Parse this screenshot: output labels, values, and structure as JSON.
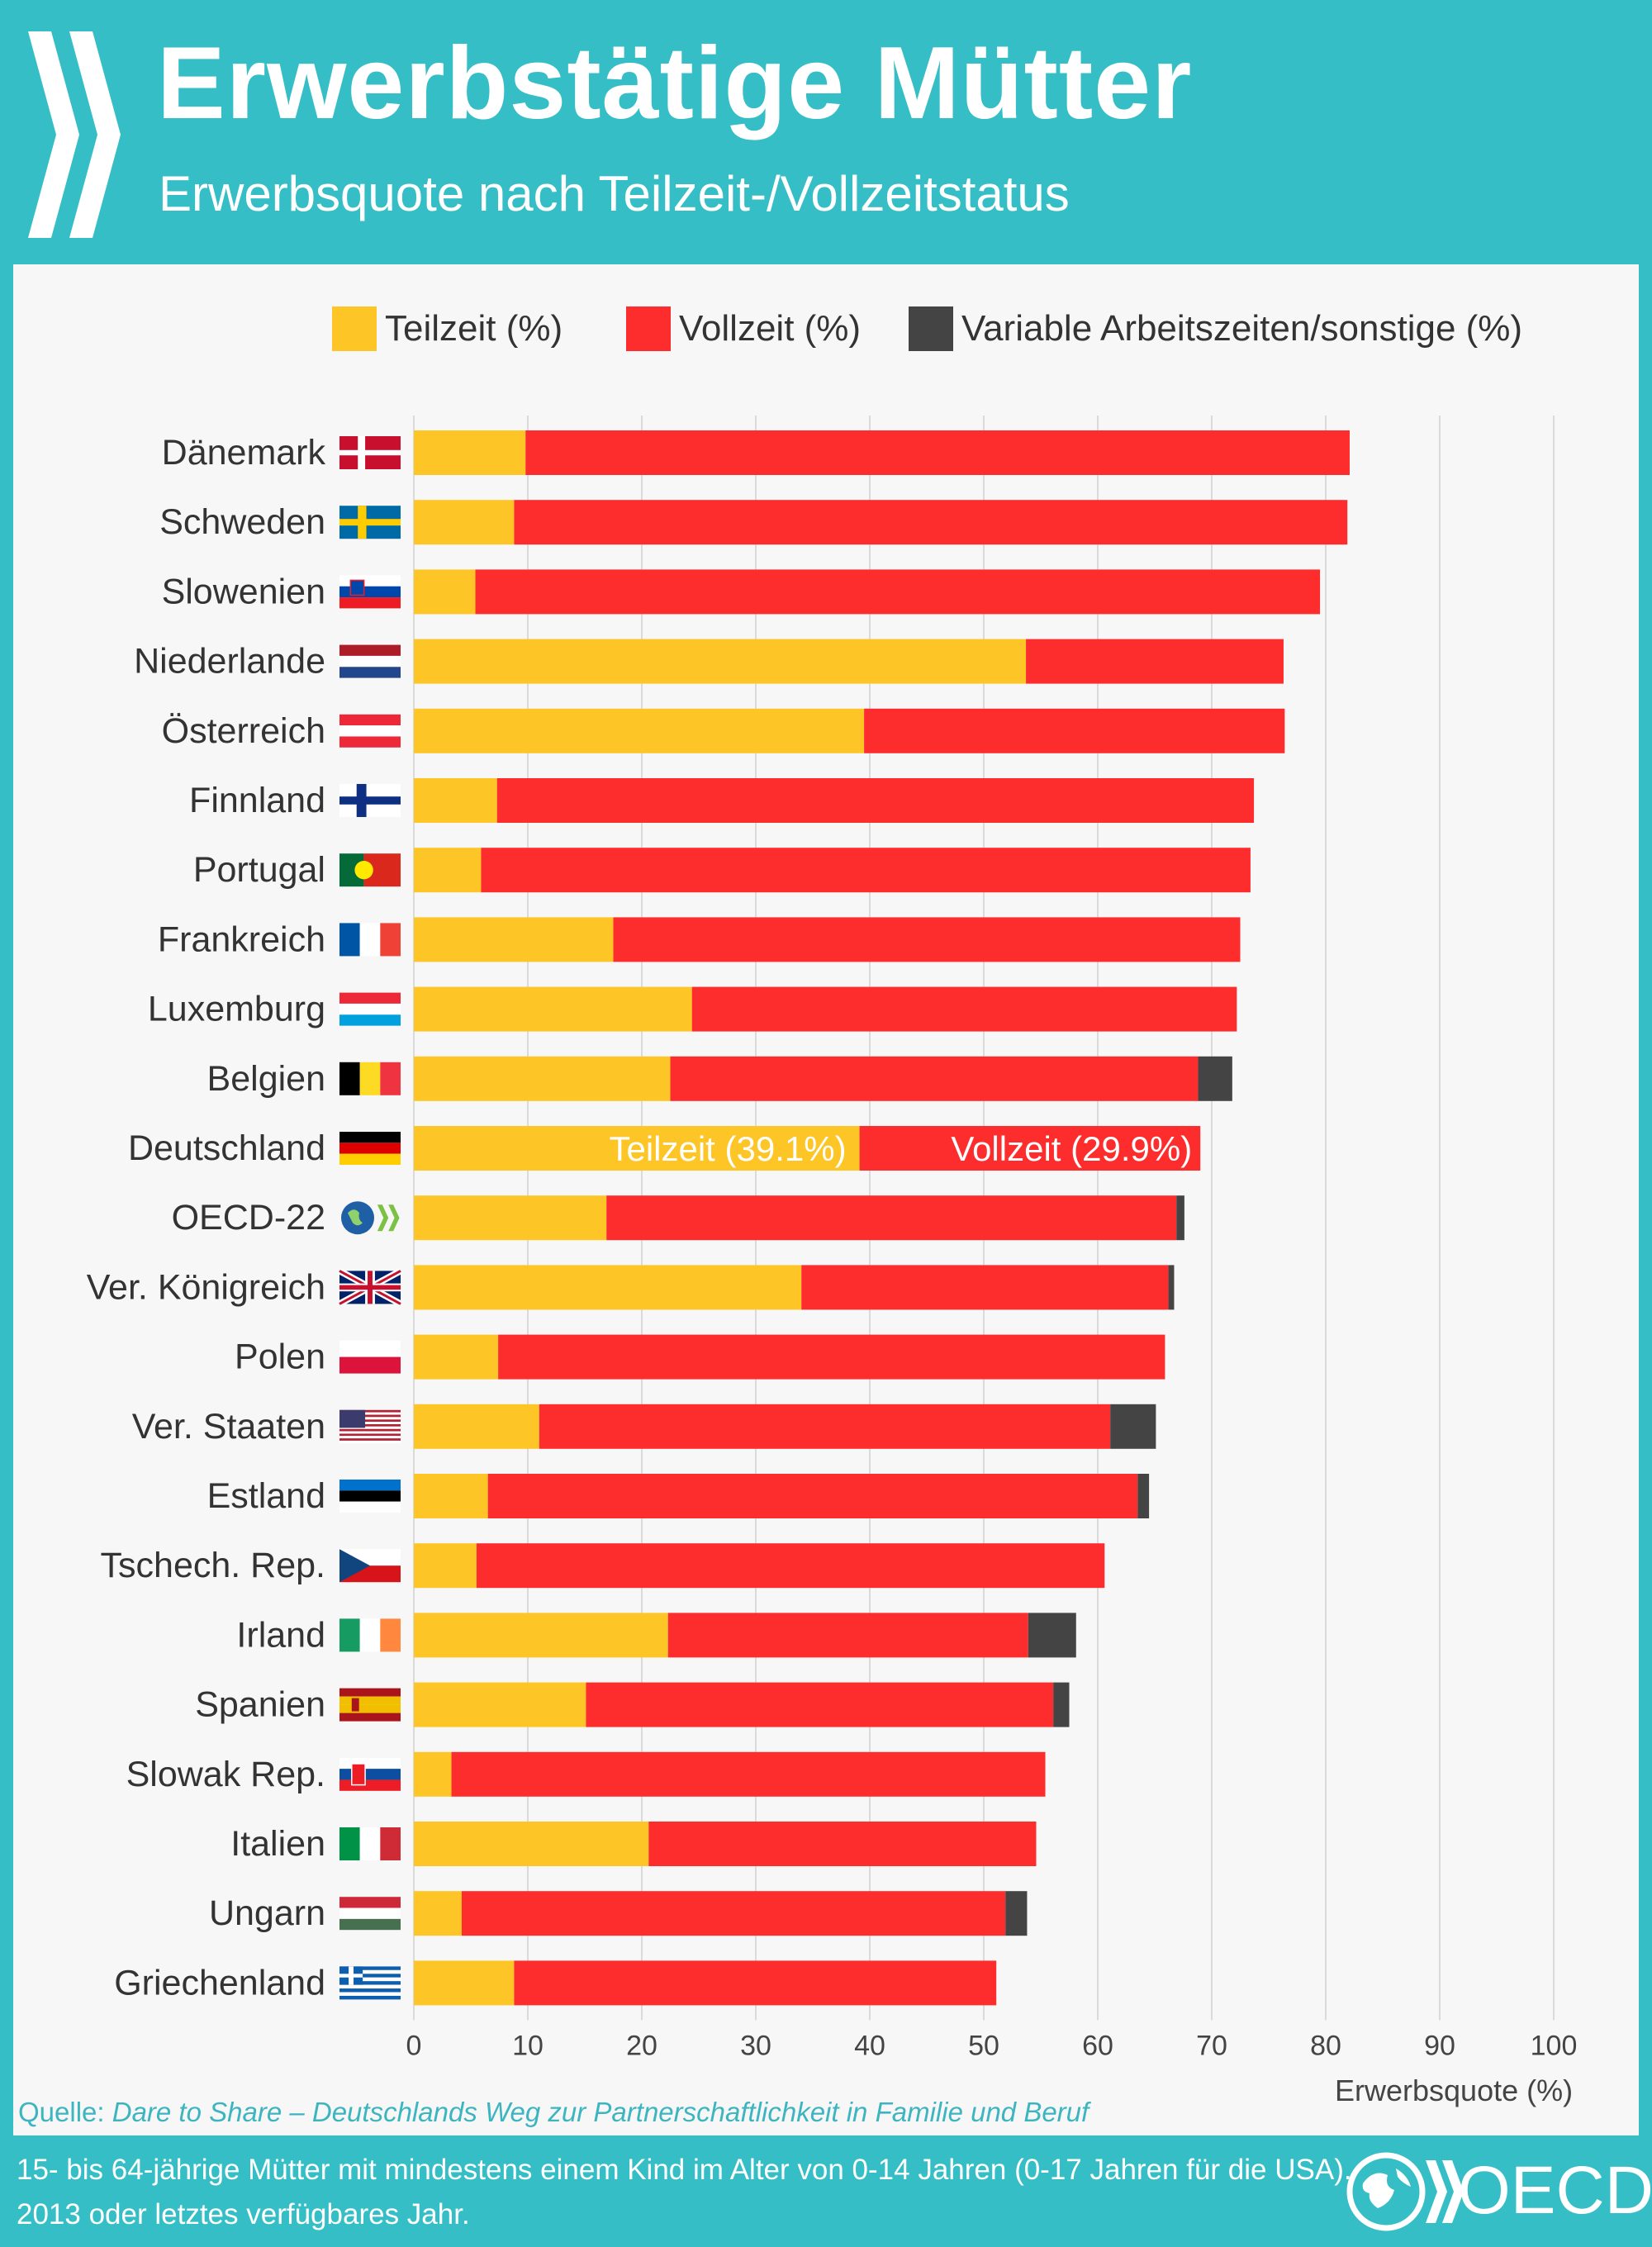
{
  "header": {
    "title": "Erwerbstätige Mütter",
    "subtitle": "Erwerbsquote nach Teilzeit-/Vollzeitstatus"
  },
  "legend": {
    "teilzeit": "Teilzeit (%)",
    "vollzeit": "Vollzeit (%)",
    "variabel": "Variable Arbeitszeiten/sonstige (%)"
  },
  "colors": {
    "teilzeit": "#FDC525",
    "vollzeit": "#FE2D2D",
    "variabel": "#444444",
    "background": "#35BEC6",
    "panel": "#F7F7F7"
  },
  "annotation": {
    "teilzeit": "Teilzeit (39.1%)",
    "vollzeit": "Vollzeit (29.9%)"
  },
  "source": {
    "prefix": "Quelle: ",
    "title": "Dare to Share – Deutschlands Weg zur Partnerschaftlichkeit in Familie und Beruf"
  },
  "footer": {
    "note_line1": "15- bis 64-jährige Mütter mit mindestens einem Kind im Alter von 0-14 Jahren (0-17 Jahren für die USA).",
    "note_line2": "2013 oder letztes verfügbares Jahr.",
    "brand": "OECD"
  },
  "chart_data": {
    "type": "bar",
    "orientation": "horizontal",
    "stacked": true,
    "title": "Erwerbstätige Mütter",
    "xlabel": "Erwerbsquote (%)",
    "xlim": [
      0,
      100
    ],
    "xticks": [
      0,
      10,
      20,
      30,
      40,
      50,
      60,
      70,
      80,
      90,
      100
    ],
    "grid": true,
    "categories": [
      "Dänemark",
      "Schweden",
      "Slowenien",
      "Niederlande",
      "Österreich",
      "Finnland",
      "Portugal",
      "Frankreich",
      "Luxemburg",
      "Belgien",
      "Deutschland",
      "OECD-22",
      "Ver. Königreich",
      "Polen",
      "Ver. Staaten",
      "Estland",
      "Tschech. Rep.",
      "Irland",
      "Spanien",
      "Slowak Rep.",
      "Italien",
      "Ungarn",
      "Griechenland"
    ],
    "flags": [
      "dk",
      "se",
      "si",
      "nl",
      "at",
      "fi",
      "pt",
      "fr",
      "lu",
      "be",
      "de",
      "oecd",
      "gb",
      "pl",
      "us",
      "ee",
      "cz",
      "ie",
      "es",
      "sk",
      "it",
      "hu",
      "gr"
    ],
    "series": [
      {
        "name": "Teilzeit (%)",
        "values": [
          9.8,
          8.8,
          5.4,
          53.7,
          39.5,
          7.3,
          5.9,
          17.5,
          24.4,
          22.5,
          39.1,
          16.9,
          34.0,
          7.4,
          11.0,
          6.5,
          5.5,
          22.3,
          15.1,
          3.3,
          20.6,
          4.2,
          8.8
        ]
      },
      {
        "name": "Vollzeit (%)",
        "values": [
          72.3,
          73.1,
          74.1,
          22.6,
          36.9,
          66.4,
          67.5,
          55.0,
          47.8,
          46.3,
          29.9,
          50.0,
          32.2,
          58.5,
          50.1,
          57.0,
          55.1,
          31.6,
          41.0,
          52.1,
          34.0,
          47.7,
          42.3
        ]
      },
      {
        "name": "Variable Arbeitszeiten/sonstige (%)",
        "values": [
          0,
          0,
          0,
          0,
          0,
          0,
          0,
          0,
          0,
          3.0,
          0,
          0.7,
          0.5,
          0,
          4.0,
          1.0,
          0,
          4.2,
          1.4,
          0,
          0,
          1.9,
          0
        ]
      }
    ]
  }
}
